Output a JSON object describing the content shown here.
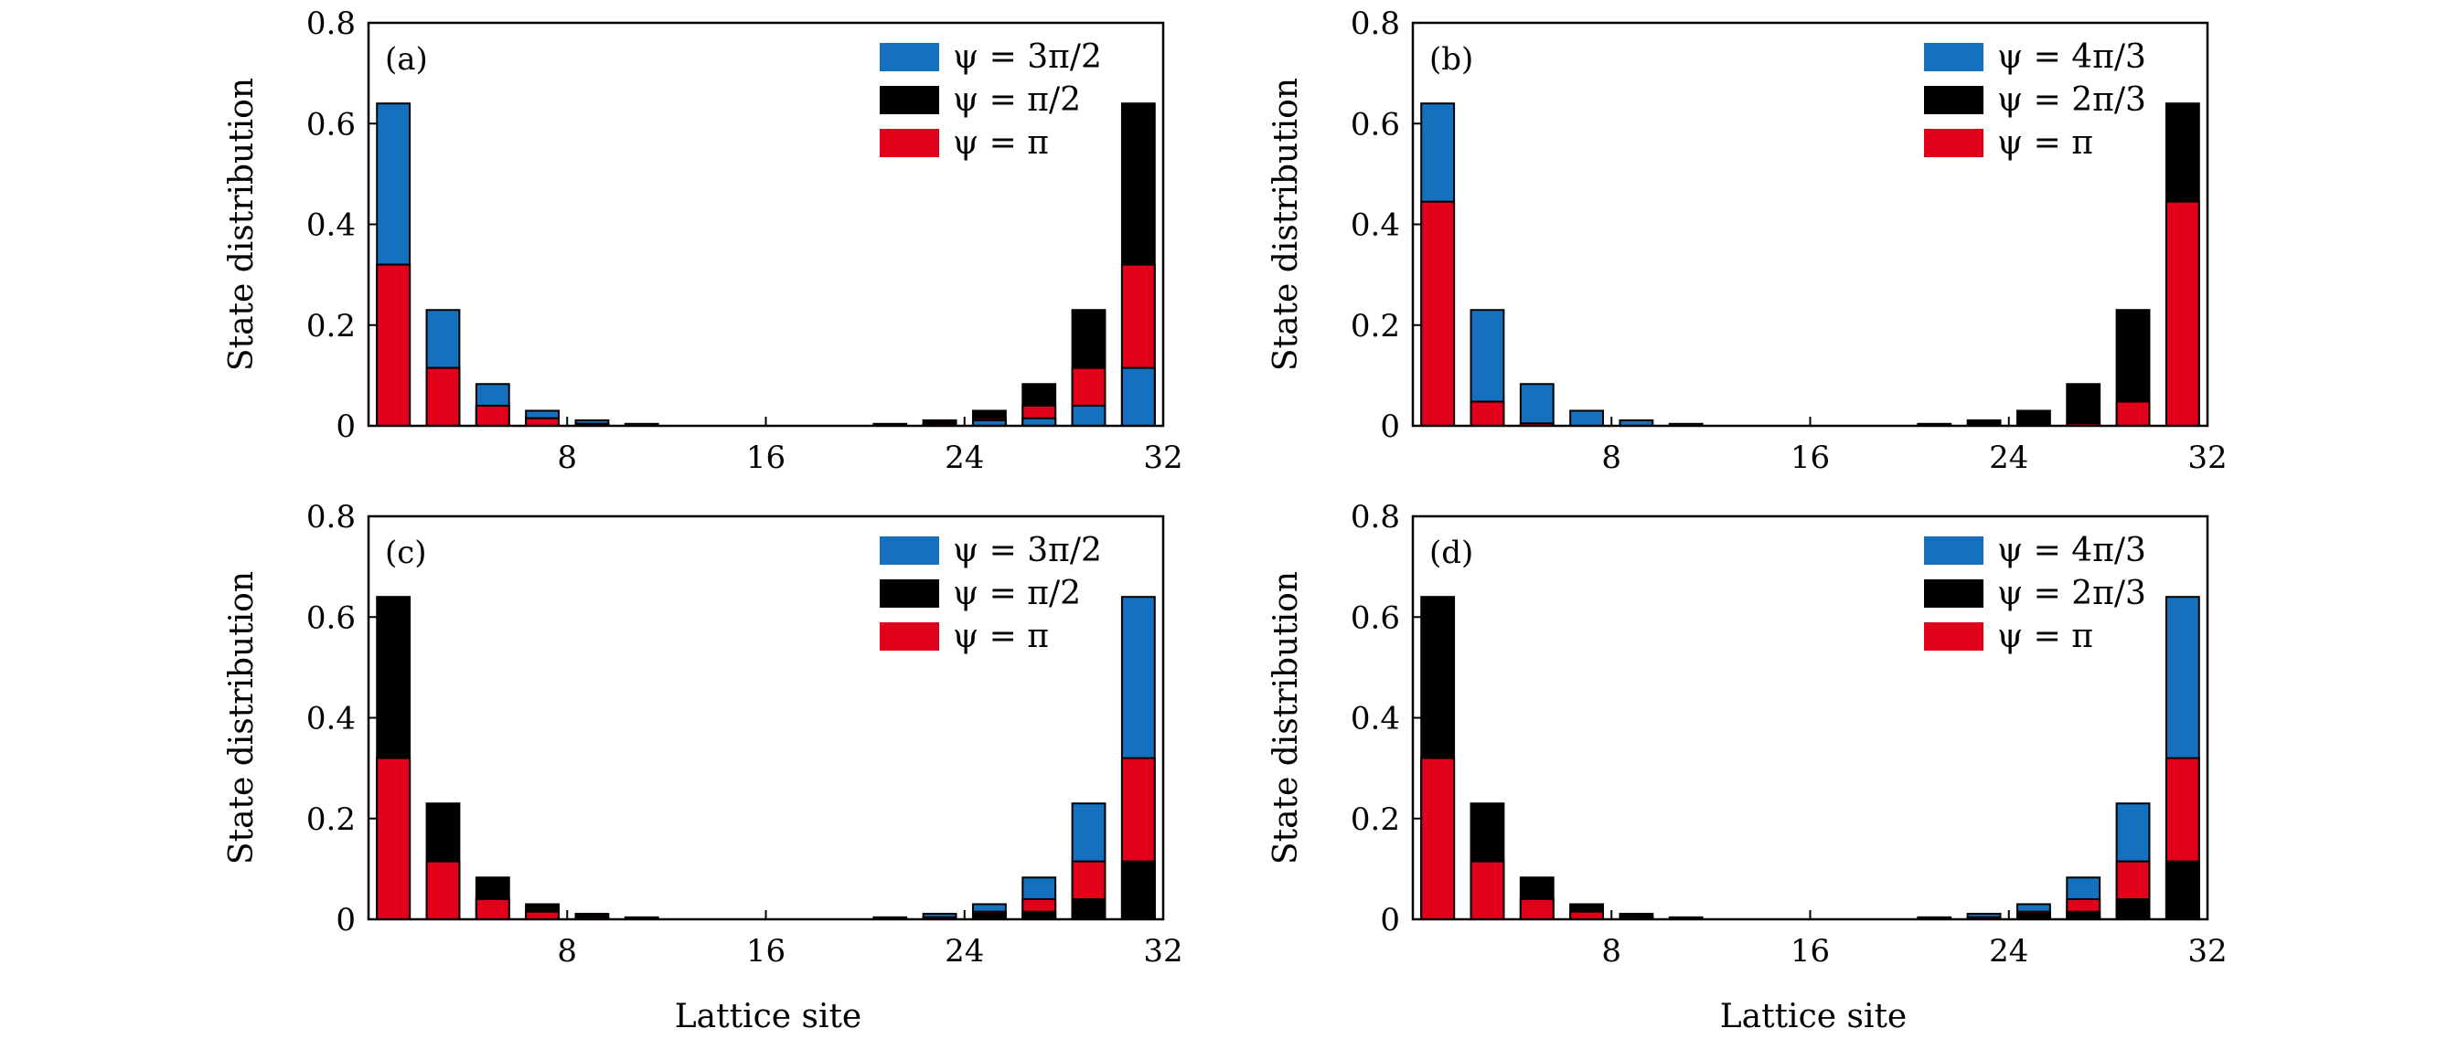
{
  "figure": {
    "xlabel": "Lattice site",
    "ylabel": "State distribution"
  },
  "colors": {
    "blue": "#1570be",
    "black": "#000000",
    "red": "#e3001b"
  },
  "chart_data": [
    {
      "type": "bar",
      "label": "(a)",
      "xlabel": "",
      "ylabel": "State distribution",
      "xticks": [
        "8",
        "16",
        "24",
        "32"
      ],
      "yticks": [
        "0",
        "0.2",
        "0.4",
        "0.6",
        "0.8"
      ],
      "xlim": [
        0,
        32
      ],
      "ylim": [
        0,
        0.8
      ],
      "legend": [
        "ψ = 3π/2",
        "ψ = π/2",
        "ψ = π"
      ],
      "legend_position": "top-right",
      "series": [
        {
          "name": "ψ = 3π/2",
          "color": "blue",
          "points": [
            [
              1,
              0.64
            ],
            [
              3,
              0.23
            ],
            [
              5,
              0.083
            ],
            [
              7,
              0.03
            ],
            [
              9,
              0.011
            ],
            [
              11,
              0.004
            ],
            [
              13,
              0.0015
            ],
            [
              15,
              0.0005
            ],
            [
              17,
              0.0002
            ],
            [
              19,
              0.0005
            ],
            [
              21,
              0.0015
            ],
            [
              23,
              0.004
            ],
            [
              25,
              0.011
            ],
            [
              27,
              0.015
            ],
            [
              29,
              0.04
            ],
            [
              31,
              0.115
            ]
          ]
        },
        {
          "name": "ψ = π/2",
          "color": "black",
          "points": [
            [
              1,
              0.32
            ],
            [
              3,
              0.115
            ],
            [
              5,
              0.04
            ],
            [
              7,
              0.015
            ],
            [
              9,
              0.004
            ],
            [
              11,
              0.0015
            ],
            [
              13,
              0.0005
            ],
            [
              15,
              0.0002
            ],
            [
              17,
              0.0005
            ],
            [
              19,
              0.0015
            ],
            [
              21,
              0.004
            ],
            [
              23,
              0.011
            ],
            [
              25,
              0.03
            ],
            [
              27,
              0.083
            ],
            [
              29,
              0.23
            ],
            [
              31,
              0.64
            ]
          ]
        },
        {
          "name": "ψ = π",
          "color": "red",
          "points": [
            [
              1,
              0.32
            ],
            [
              3,
              0.115
            ],
            [
              5,
              0.04
            ],
            [
              7,
              0.015
            ],
            [
              9,
              0.004
            ],
            [
              11,
              0.0015
            ],
            [
              13,
              0.0005
            ],
            [
              15,
              0.0002
            ],
            [
              17,
              0.0002
            ],
            [
              19,
              0.0005
            ],
            [
              21,
              0.0015
            ],
            [
              23,
              0.004
            ],
            [
              25,
              0.015
            ],
            [
              27,
              0.04
            ],
            [
              29,
              0.115
            ],
            [
              31,
              0.32
            ]
          ]
        }
      ]
    },
    {
      "type": "bar",
      "label": "(b)",
      "xlabel": "",
      "ylabel": "State distribution",
      "xticks": [
        "8",
        "16",
        "24",
        "32"
      ],
      "yticks": [
        "0",
        "0.2",
        "0.4",
        "0.6",
        "0.8"
      ],
      "xlim": [
        0,
        32
      ],
      "ylim": [
        0,
        0.8
      ],
      "legend": [
        "ψ = 4π/3",
        "ψ = 2π/3",
        "ψ = π"
      ],
      "legend_position": "top-right",
      "series": [
        {
          "name": "ψ = 4π/3",
          "color": "blue",
          "points": [
            [
              1,
              0.64
            ],
            [
              3,
              0.23
            ],
            [
              5,
              0.083
            ],
            [
              7,
              0.03
            ],
            [
              9,
              0.011
            ],
            [
              11,
              0.004
            ],
            [
              13,
              0.0015
            ],
            [
              15,
              0.0005
            ],
            [
              17,
              0.0002
            ],
            [
              19,
              0.0001
            ],
            [
              21,
              0.0001
            ],
            [
              23,
              0.0001
            ],
            [
              25,
              0.0001
            ],
            [
              27,
              0.0001
            ],
            [
              29,
              0.0001
            ],
            [
              31,
              0.0001
            ]
          ]
        },
        {
          "name": "ψ = 2π/3",
          "color": "black",
          "points": [
            [
              1,
              0.0001
            ],
            [
              3,
              0.0001
            ],
            [
              5,
              0.0001
            ],
            [
              7,
              0.0001
            ],
            [
              9,
              0.0001
            ],
            [
              11,
              0.0001
            ],
            [
              13,
              0.0001
            ],
            [
              15,
              0.0002
            ],
            [
              17,
              0.0005
            ],
            [
              19,
              0.0015
            ],
            [
              21,
              0.004
            ],
            [
              23,
              0.011
            ],
            [
              25,
              0.03
            ],
            [
              27,
              0.083
            ],
            [
              29,
              0.23
            ],
            [
              31,
              0.64
            ]
          ]
        },
        {
          "name": "ψ = π",
          "color": "red",
          "points": [
            [
              1,
              0.445
            ],
            [
              3,
              0.048
            ],
            [
              5,
              0.005
            ],
            [
              7,
              0.001
            ],
            [
              9,
              0.0002
            ],
            [
              11,
              0.0001
            ],
            [
              13,
              0.0001
            ],
            [
              15,
              0.0001
            ],
            [
              17,
              0.0001
            ],
            [
              19,
              0.0001
            ],
            [
              21,
              0.0001
            ],
            [
              23,
              0.0002
            ],
            [
              25,
              0.001
            ],
            [
              27,
              0.005
            ],
            [
              29,
              0.048
            ],
            [
              31,
              0.445
            ]
          ]
        }
      ]
    },
    {
      "type": "bar",
      "label": "(c)",
      "xlabel": "Lattice site",
      "ylabel": "State distribution",
      "xticks": [
        "8",
        "16",
        "24",
        "32"
      ],
      "yticks": [
        "0",
        "0.2",
        "0.4",
        "0.6",
        "0.8"
      ],
      "xlim": [
        0,
        32
      ],
      "ylim": [
        0,
        0.8
      ],
      "legend": [
        "ψ = 3π/2",
        "ψ = π/2",
        "ψ = π"
      ],
      "legend_position": "top-right",
      "series": [
        {
          "name": "ψ = 3π/2",
          "color": "blue",
          "points": [
            [
              1,
              0.32
            ],
            [
              3,
              0.115
            ],
            [
              5,
              0.04
            ],
            [
              7,
              0.015
            ],
            [
              9,
              0.004
            ],
            [
              11,
              0.0015
            ],
            [
              13,
              0.0005
            ],
            [
              15,
              0.0002
            ],
            [
              17,
              0.0005
            ],
            [
              19,
              0.0015
            ],
            [
              21,
              0.004
            ],
            [
              23,
              0.011
            ],
            [
              25,
              0.03
            ],
            [
              27,
              0.083
            ],
            [
              29,
              0.23
            ],
            [
              31,
              0.64
            ]
          ]
        },
        {
          "name": "ψ = π/2",
          "color": "black",
          "points": [
            [
              1,
              0.64
            ],
            [
              3,
              0.23
            ],
            [
              5,
              0.083
            ],
            [
              7,
              0.03
            ],
            [
              9,
              0.011
            ],
            [
              11,
              0.004
            ],
            [
              13,
              0.0015
            ],
            [
              15,
              0.0005
            ],
            [
              17,
              0.0002
            ],
            [
              19,
              0.0005
            ],
            [
              21,
              0.0015
            ],
            [
              23,
              0.004
            ],
            [
              25,
              0.011
            ],
            [
              27,
              0.015
            ],
            [
              29,
              0.04
            ],
            [
              31,
              0.115
            ]
          ]
        },
        {
          "name": "ψ = π",
          "color": "red",
          "points": [
            [
              1,
              0.32
            ],
            [
              3,
              0.115
            ],
            [
              5,
              0.04
            ],
            [
              7,
              0.015
            ],
            [
              9,
              0.004
            ],
            [
              11,
              0.0015
            ],
            [
              13,
              0.0005
            ],
            [
              15,
              0.0002
            ],
            [
              17,
              0.0002
            ],
            [
              19,
              0.0005
            ],
            [
              21,
              0.0015
            ],
            [
              23,
              0.004
            ],
            [
              25,
              0.015
            ],
            [
              27,
              0.04
            ],
            [
              29,
              0.115
            ],
            [
              31,
              0.32
            ]
          ]
        }
      ]
    },
    {
      "type": "bar",
      "label": "(d)",
      "xlabel": "Lattice site",
      "ylabel": "State distribution",
      "xticks": [
        "8",
        "16",
        "24",
        "32"
      ],
      "yticks": [
        "0",
        "0.2",
        "0.4",
        "0.6",
        "0.8"
      ],
      "xlim": [
        0,
        32
      ],
      "ylim": [
        0,
        0.8
      ],
      "legend": [
        "ψ = 4π/3",
        "ψ = 2π/3",
        "ψ = π"
      ],
      "legend_position": "top-right",
      "series": [
        {
          "name": "ψ = 4π/3",
          "color": "blue",
          "points": [
            [
              1,
              0.32
            ],
            [
              3,
              0.115
            ],
            [
              5,
              0.04
            ],
            [
              7,
              0.015
            ],
            [
              9,
              0.004
            ],
            [
              11,
              0.0015
            ],
            [
              13,
              0.0005
            ],
            [
              15,
              0.0002
            ],
            [
              17,
              0.0005
            ],
            [
              19,
              0.0015
            ],
            [
              21,
              0.004
            ],
            [
              23,
              0.011
            ],
            [
              25,
              0.03
            ],
            [
              27,
              0.083
            ],
            [
              29,
              0.23
            ],
            [
              31,
              0.64
            ]
          ]
        },
        {
          "name": "ψ = 2π/3",
          "color": "black",
          "points": [
            [
              1,
              0.64
            ],
            [
              3,
              0.23
            ],
            [
              5,
              0.083
            ],
            [
              7,
              0.03
            ],
            [
              9,
              0.011
            ],
            [
              11,
              0.004
            ],
            [
              13,
              0.0015
            ],
            [
              15,
              0.0005
            ],
            [
              17,
              0.0002
            ],
            [
              19,
              0.0005
            ],
            [
              21,
              0.0015
            ],
            [
              23,
              0.004
            ],
            [
              25,
              0.011
            ],
            [
              27,
              0.015
            ],
            [
              29,
              0.04
            ],
            [
              31,
              0.115
            ]
          ]
        },
        {
          "name": "ψ = π",
          "color": "red",
          "points": [
            [
              1,
              0.32
            ],
            [
              3,
              0.115
            ],
            [
              5,
              0.04
            ],
            [
              7,
              0.015
            ],
            [
              9,
              0.004
            ],
            [
              11,
              0.0015
            ],
            [
              13,
              0.0005
            ],
            [
              15,
              0.0002
            ],
            [
              17,
              0.0002
            ],
            [
              19,
              0.0005
            ],
            [
              21,
              0.0015
            ],
            [
              23,
              0.004
            ],
            [
              25,
              0.015
            ],
            [
              27,
              0.04
            ],
            [
              29,
              0.115
            ],
            [
              31,
              0.32
            ]
          ]
        }
      ]
    }
  ]
}
